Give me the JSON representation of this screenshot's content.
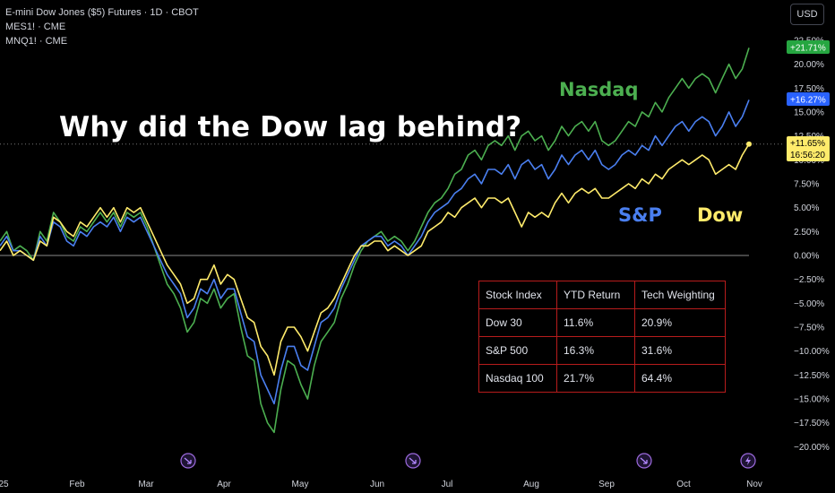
{
  "header": {
    "symbol_line": "E-mini Dow Jones ($5) Futures · 1D · CBOT",
    "compare_1": "MES1! · CME",
    "compare_2": "MNQ1! · CME",
    "currency": "USD"
  },
  "annotation": {
    "headline": "Why did the Dow lag behind?",
    "nasdaq_label": "Nasdaq",
    "sp_label": "S&P",
    "dow_label": "Dow"
  },
  "colors": {
    "nasdaq": "#4caf50",
    "sp": "#4a7ff0",
    "dow": "#ffeb6b",
    "zero_line": "#8a8a8a",
    "table_border": "#b71c1c"
  },
  "table": {
    "headers": [
      "Stock Index",
      "YTD Return",
      "Tech Weighting"
    ],
    "rows": [
      [
        "Dow 30",
        "11.6%",
        "20.9%"
      ],
      [
        "S&P 500",
        "16.3%",
        "31.6%"
      ],
      [
        "Nasdaq 100",
        "21.7%",
        "64.4%"
      ]
    ]
  },
  "price_tags": {
    "nasdaq": "+21.71%",
    "sp": "+16.27%",
    "dow": "+11.65%",
    "countdown": "16:56:20"
  },
  "chart_data": {
    "type": "line",
    "x_ticks": [
      "25",
      "Feb",
      "Mar",
      "Apr",
      "May",
      "Jun",
      "Jul",
      "Aug",
      "Sep",
      "Oct",
      "Nov"
    ],
    "y_ticks": [
      "22.50%",
      "20.00%",
      "17.50%",
      "15.00%",
      "12.50%",
      "10.00%",
      "7.50%",
      "5.00%",
      "2.50%",
      "0.00%",
      "−2.50%",
      "−5.00%",
      "−7.50%",
      "−10.00%",
      "−12.50%",
      "−15.00%",
      "−17.50%",
      "−20.00%"
    ],
    "ylim": [
      -20.5,
      23
    ],
    "series": [
      {
        "name": "Nasdaq",
        "values": [
          1.5,
          2.5,
          0.5,
          1.0,
          0.5,
          -0.5,
          2.5,
          1.5,
          4.5,
          3.5,
          2.0,
          1.5,
          3.0,
          2.5,
          3.5,
          4.5,
          3.5,
          4.5,
          3.0,
          4.5,
          4.0,
          4.5,
          3.0,
          1.0,
          -1.0,
          -3.0,
          -4.0,
          -5.5,
          -8.0,
          -7.0,
          -4.5,
          -5.0,
          -3.5,
          -5.5,
          -4.5,
          -4.0,
          -7.5,
          -10.5,
          -11.0,
          -15.5,
          -17.5,
          -18.5,
          -14.0,
          -11.0,
          -11.5,
          -13.5,
          -15.0,
          -11.5,
          -9.0,
          -8.0,
          -7.0,
          -4.5,
          -3.0,
          -1.0,
          0.5,
          1.5,
          2.0,
          2.5,
          1.5,
          2.0,
          1.5,
          0.5,
          1.5,
          3.0,
          4.5,
          5.5,
          6.0,
          7.0,
          8.5,
          9.0,
          10.5,
          11.0,
          10.0,
          11.5,
          12.0,
          11.5,
          12.5,
          11.0,
          12.5,
          13.0,
          12.0,
          12.5,
          11.0,
          12.0,
          13.5,
          12.5,
          13.5,
          14.0,
          13.0,
          14.0,
          12.0,
          11.5,
          12.0,
          13.0,
          14.0,
          13.5,
          15.0,
          14.5,
          16.0,
          15.0,
          16.5,
          17.5,
          18.5,
          17.5,
          18.5,
          19.0,
          18.5,
          17.0,
          18.5,
          20.0,
          18.5,
          19.5,
          21.71
        ]
      },
      {
        "name": "S&P",
        "values": [
          1.0,
          2.0,
          0.5,
          0.5,
          0.0,
          -0.5,
          2.0,
          1.0,
          3.5,
          3.0,
          1.5,
          1.0,
          2.5,
          2.0,
          3.0,
          3.5,
          3.0,
          4.0,
          2.5,
          4.0,
          3.5,
          4.0,
          2.5,
          1.0,
          -0.5,
          -2.0,
          -3.0,
          -4.0,
          -6.5,
          -5.5,
          -3.5,
          -4.0,
          -2.5,
          -4.5,
          -3.5,
          -3.5,
          -6.0,
          -8.5,
          -9.0,
          -12.5,
          -14.0,
          -15.5,
          -12.0,
          -9.5,
          -9.5,
          -11.5,
          -12.0,
          -9.5,
          -7.0,
          -6.5,
          -5.5,
          -3.5,
          -2.0,
          -0.5,
          1.0,
          1.5,
          2.0,
          2.0,
          1.0,
          1.5,
          1.0,
          0.0,
          1.0,
          2.0,
          3.5,
          4.5,
          5.0,
          5.5,
          6.5,
          7.0,
          8.0,
          8.5,
          7.5,
          9.0,
          9.0,
          8.5,
          9.5,
          8.0,
          9.5,
          10.0,
          9.0,
          9.5,
          8.0,
          9.0,
          10.5,
          9.5,
          10.5,
          11.0,
          10.0,
          11.0,
          9.5,
          9.0,
          9.5,
          10.5,
          11.0,
          10.5,
          11.5,
          11.0,
          12.5,
          11.5,
          12.5,
          13.5,
          14.0,
          13.0,
          14.0,
          14.5,
          14.0,
          12.5,
          13.5,
          15.0,
          13.5,
          14.5,
          16.27
        ]
      },
      {
        "name": "Dow",
        "values": [
          0.5,
          1.5,
          0.0,
          0.5,
          0.0,
          -0.5,
          1.5,
          1.0,
          4.0,
          3.5,
          2.5,
          2.0,
          3.5,
          3.0,
          4.0,
          5.0,
          4.0,
          5.0,
          3.5,
          5.0,
          4.5,
          5.0,
          3.5,
          2.0,
          0.5,
          -1.0,
          -2.0,
          -3.0,
          -5.0,
          -4.5,
          -2.5,
          -2.5,
          -1.0,
          -3.0,
          -2.0,
          -2.5,
          -4.5,
          -6.5,
          -7.0,
          -9.5,
          -10.5,
          -12.5,
          -9.0,
          -7.5,
          -7.5,
          -8.5,
          -10.0,
          -8.0,
          -6.0,
          -5.5,
          -4.5,
          -3.0,
          -1.5,
          0.0,
          1.0,
          1.0,
          1.5,
          1.5,
          0.5,
          1.0,
          0.5,
          0.0,
          0.5,
          1.0,
          2.5,
          3.0,
          3.5,
          4.5,
          4.0,
          5.0,
          5.5,
          6.0,
          5.0,
          6.0,
          6.0,
          5.5,
          6.0,
          4.5,
          3.0,
          4.5,
          4.0,
          4.5,
          4.0,
          5.5,
          6.5,
          5.5,
          6.5,
          7.0,
          6.5,
          7.0,
          6.0,
          6.0,
          6.5,
          7.0,
          7.5,
          7.0,
          8.0,
          7.5,
          8.5,
          8.0,
          9.0,
          9.5,
          10.0,
          9.5,
          10.0,
          10.5,
          10.0,
          8.5,
          9.0,
          9.5,
          9.0,
          10.5,
          11.65
        ]
      }
    ]
  }
}
